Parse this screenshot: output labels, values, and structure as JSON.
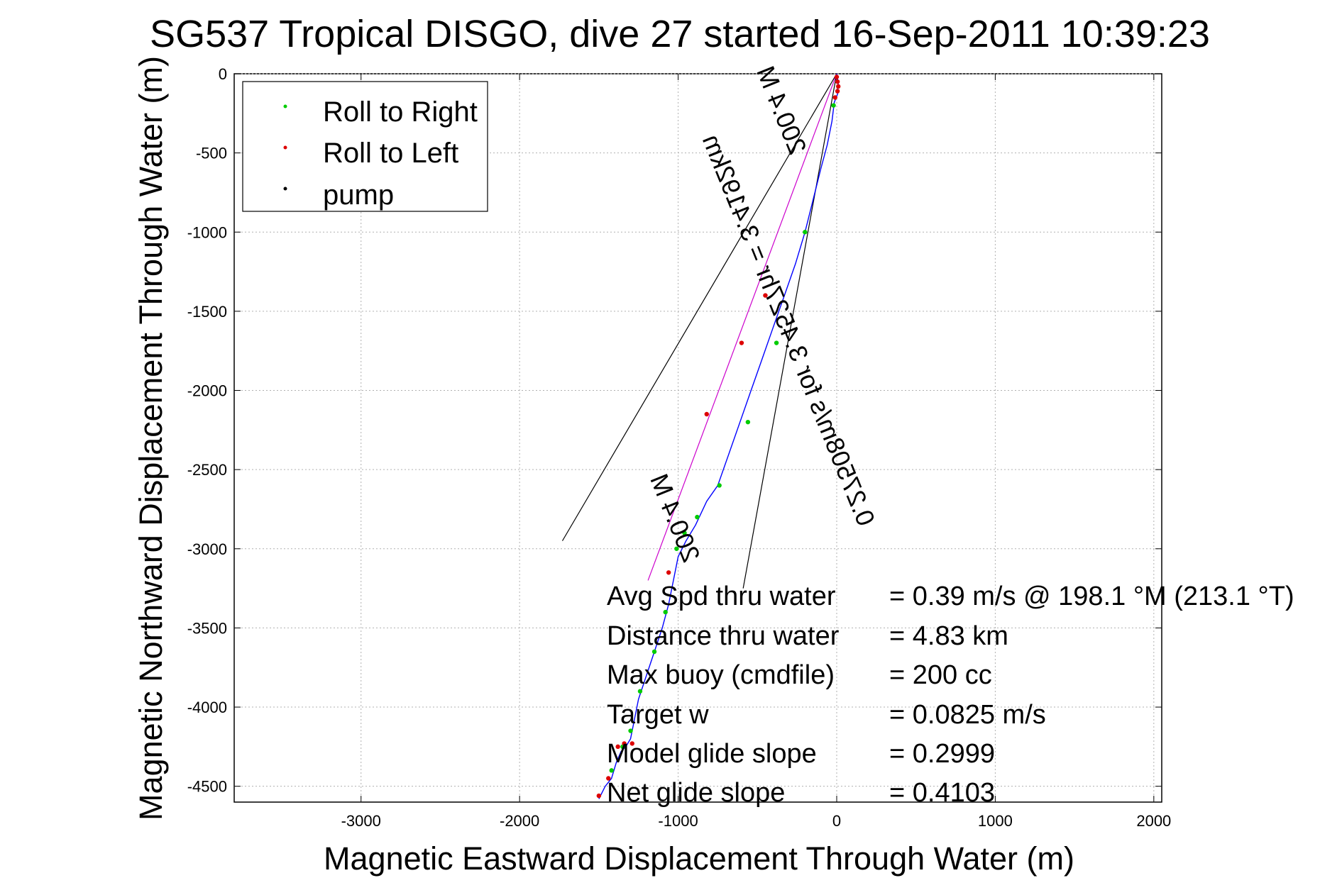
{
  "chart_data": {
    "type": "line",
    "title": "SG537 Tropical DISGO, dive 27 started 16-Sep-2011 10:39:23",
    "xlabel": "Magnetic Eastward Displacement Through Water (m)",
    "ylabel": "Magnetic Northward Displacement Through Water (m)",
    "xlim": [
      -3800,
      2050
    ],
    "ylim": [
      -4600,
      0
    ],
    "xticks": [
      -3000,
      -2000,
      -1000,
      0,
      1000,
      2000
    ],
    "yticks": [
      0,
      -500,
      -1000,
      -1500,
      -2000,
      -2500,
      -3000,
      -3500,
      -4000,
      -4500
    ],
    "grid": true,
    "legend": {
      "placement": "top-left",
      "entries": [
        {
          "label": "Roll to Right",
          "color": "#00cc00"
        },
        {
          "label": "Roll to Left",
          "color": "#dd0000"
        },
        {
          "label": "pump",
          "color": "#000000"
        }
      ]
    },
    "series": [
      {
        "color": "#0000ff",
        "x": [
          0,
          10,
          5,
          -15,
          -30,
          -60,
          -100,
          -150,
          -200,
          -260,
          -330,
          -400,
          -470,
          -540,
          -610,
          -680,
          -750,
          -820,
          -890,
          -950,
          -1000,
          -1030,
          -1060,
          -1100,
          -1150,
          -1200,
          -1250,
          -1280,
          -1300,
          -1330,
          -1360,
          -1390,
          -1420,
          -1460,
          -1500
        ],
        "y": [
          0,
          -60,
          -130,
          -180,
          -300,
          -450,
          -600,
          -800,
          -1000,
          -1200,
          -1400,
          -1600,
          -1800,
          -2000,
          -2200,
          -2400,
          -2600,
          -2700,
          -2850,
          -2950,
          -3050,
          -3200,
          -3350,
          -3500,
          -3650,
          -3800,
          -3950,
          -4100,
          -4200,
          -4250,
          -4280,
          -4350,
          -4450,
          -4500,
          -4580
        ]
      },
      {
        "name": "Roll to Right",
        "color": "#00cc00",
        "x": [
          -20,
          -200,
          -380,
          -560,
          -740,
          -880,
          -960,
          -1010,
          -1080,
          -1150,
          -1240,
          -1300,
          -1350,
          -1420
        ],
        "y": [
          -200,
          -1000,
          -1700,
          -2200,
          -2600,
          -2800,
          -2900,
          -3000,
          -3400,
          -3650,
          -3900,
          -4150,
          -4250,
          -4400
        ]
      },
      {
        "name": "Roll to Left",
        "color": "#dd0000",
        "x": [
          0,
          5,
          10,
          5,
          -10,
          -450,
          -600,
          -820,
          -1060,
          -1290,
          -1340,
          -1380,
          -1440,
          -1500
        ],
        "y": [
          -20,
          -50,
          -80,
          -110,
          -150,
          -1400,
          -1700,
          -2150,
          -3150,
          -4230,
          -4230,
          -4250,
          -4450,
          -4560
        ]
      }
    ],
    "annotations": [
      {
        "text": "200.4 M",
        "style": "mirrored"
      },
      {
        "text": "0.27508m/s for 3.4527hr = 3.4192km",
        "style": "mirrored"
      },
      {
        "text": "200.4 M",
        "style": "mirrored"
      }
    ],
    "stats": [
      {
        "label": "Avg Spd thru water",
        "value": "=  0.39 m/s @ 198.1 °M (213.1 °T)"
      },
      {
        "label": "Distance thru water",
        "value": "=  4.83 km"
      },
      {
        "label": "Max buoy (cmdfile)",
        "value": "= 200 cc"
      },
      {
        "label": "Target w",
        "value": "= 0.0825 m/s"
      },
      {
        "label": "Model glide slope",
        "value": "= 0.2999"
      },
      {
        "label": "Net glide slope",
        "value": "= 0.4103"
      }
    ]
  }
}
